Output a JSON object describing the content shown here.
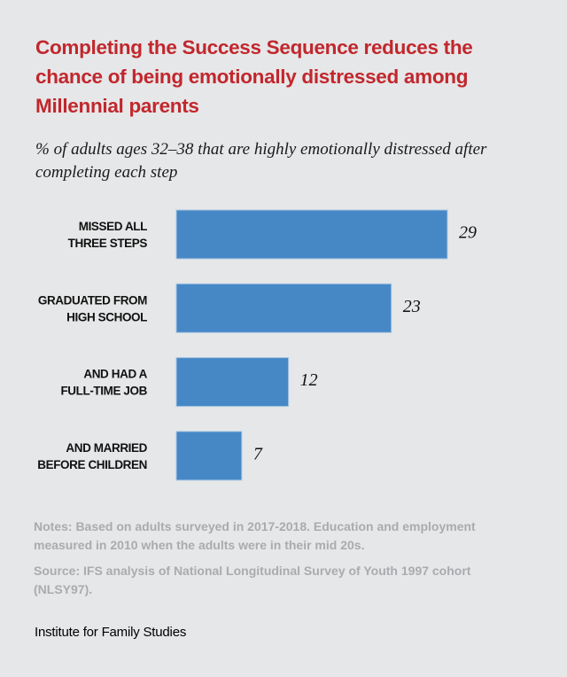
{
  "header": {
    "title": "Completing the Success Sequence reduces the chance of being emotionally distressed among Millennial parents",
    "subtitle": "% of adults ages 32–38 that are highly emotionally distressed after completing each step"
  },
  "chart_data": {
    "type": "bar",
    "orientation": "horizontal",
    "title": "Completing the Success Sequence reduces the chance of being emotionally distressed among Millennial parents",
    "subtitle": "% of adults ages 32–38 that are highly emotionally distressed after completing each step",
    "categories": [
      [
        "MISSED ALL",
        "THREE STEPS"
      ],
      [
        "GRADUATED FROM",
        "HIGH SCHOOL"
      ],
      [
        "AND HAD A",
        "FULL-TIME JOB"
      ],
      [
        "AND MARRIED",
        "BEFORE CHILDREN"
      ]
    ],
    "values": [
      29,
      23,
      12,
      7
    ],
    "value_labels": [
      "29",
      "23",
      "12",
      "7"
    ],
    "xlabel": "",
    "ylabel": "",
    "xlim": [
      0,
      29
    ],
    "grid": false,
    "legend": "none",
    "bar_color": "#4688c6"
  },
  "footer": {
    "notes": "Notes: Based on adults surveyed in 2017-2018. Education and employment measured in 2010 when the adults were in their mid 20s.",
    "source": "Source: IFS analysis of National Longitudinal Survey of Youth 1997 cohort (NLSY97).",
    "credit": "Institute for Family Studies"
  },
  "colors": {
    "background": "#e6e7e8",
    "title": "#c1272d",
    "bar": "#4688c6",
    "notes": "#a9abae"
  }
}
